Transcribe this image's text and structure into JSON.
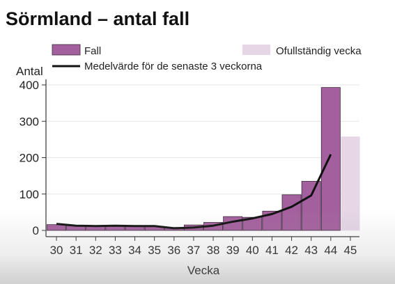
{
  "title": "Sörmland – antal fall",
  "chart_data": {
    "type": "bar",
    "title": "Sörmland – antal fall",
    "xlabel": "Vecka",
    "ylabel": "Antal",
    "ylim": [
      0,
      420
    ],
    "yticks": [
      0,
      100,
      200,
      300,
      400
    ],
    "categories": [
      "30",
      "31",
      "32",
      "33",
      "34",
      "35",
      "36",
      "37",
      "38",
      "39",
      "40",
      "41",
      "42",
      "43",
      "44",
      "45"
    ],
    "series": [
      {
        "name": "Fall",
        "type": "bar",
        "color": "#a4609e",
        "values": [
          16,
          13,
          13,
          12,
          11,
          11,
          8,
          15,
          22,
          38,
          36,
          53,
          98,
          135,
          393,
          null
        ]
      },
      {
        "name": "Ofullständig vecka",
        "type": "bar",
        "color": "#e6d6e6",
        "values": [
          null,
          null,
          null,
          null,
          null,
          null,
          null,
          null,
          null,
          null,
          null,
          null,
          null,
          null,
          null,
          258
        ]
      },
      {
        "name": "Medelvärde för de senaste 3 veckorna",
        "type": "line",
        "color": "#111111",
        "values": [
          18,
          13,
          12,
          13,
          12,
          12,
          6,
          8,
          13,
          24,
          33,
          45,
          65,
          96,
          209,
          null
        ]
      }
    ],
    "legend": {
      "placement": "top",
      "items": [
        "Fall",
        "Ofullständig vecka",
        "Medelvärde för de senaste 3 veckorna"
      ]
    },
    "grid": true
  }
}
